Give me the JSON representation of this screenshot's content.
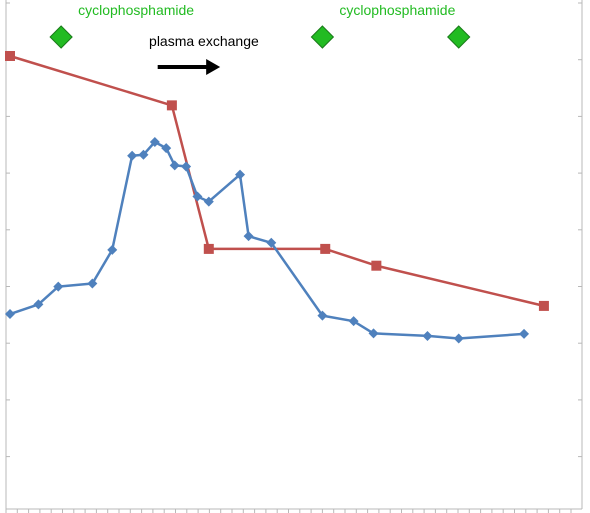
{
  "chart_data": {
    "type": "line",
    "title": "",
    "xlabel": "",
    "ylabel": "",
    "xlim": [
      0,
      100
    ],
    "ylim": [
      0,
      100
    ],
    "grid": false,
    "legend": "none",
    "series": [
      {
        "color": "#C0504D",
        "marker": "square",
        "points": [
          [
            0,
            89.0
          ],
          [
            28.5,
            79.3
          ],
          [
            35,
            51.1
          ],
          [
            55.5,
            51.1
          ],
          [
            64.5,
            47.8
          ],
          [
            94,
            39.9
          ]
        ]
      },
      {
        "color": "#4F81BD",
        "marker": "diamond",
        "points": [
          [
            0,
            38.3
          ],
          [
            5,
            40.2
          ],
          [
            8.5,
            43.7
          ],
          [
            14.5,
            44.3
          ],
          [
            18,
            50.9
          ],
          [
            21.5,
            69.4
          ],
          [
            23.5,
            69.6
          ],
          [
            25.5,
            72.1
          ],
          [
            27.5,
            70.9
          ],
          [
            29,
            67.5
          ],
          [
            31,
            67.3
          ],
          [
            33,
            61.4
          ],
          [
            35,
            60.4
          ],
          [
            40.5,
            65.7
          ],
          [
            42,
            53.6
          ],
          [
            46,
            52.3
          ],
          [
            55,
            38.0
          ],
          [
            60.5,
            36.9
          ],
          [
            64,
            34.5
          ],
          [
            73.5,
            34.0
          ],
          [
            79,
            33.5
          ],
          [
            90.5,
            34.4
          ]
        ]
      }
    ],
    "annotations": [
      {
        "kind": "marker",
        "label": "cyclophosphamide",
        "x": 9,
        "color": "#22BB22"
      },
      {
        "kind": "marker",
        "label": "cyclophosphamide",
        "x": 55,
        "color": "#22BB22"
      },
      {
        "kind": "marker",
        "label": "",
        "x": 79,
        "color": "#22BB22"
      },
      {
        "kind": "arrow",
        "label": "plasma exchange",
        "x_from": 26,
        "x_to": 37,
        "color": "#000000"
      }
    ]
  }
}
